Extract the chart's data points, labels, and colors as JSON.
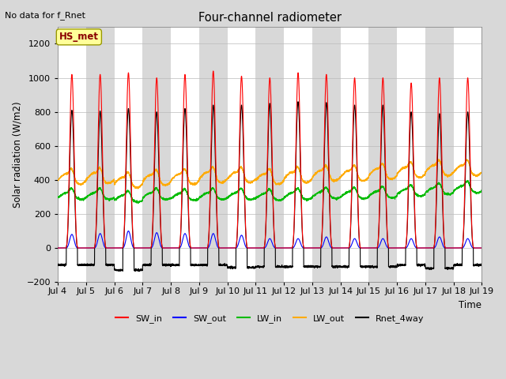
{
  "title": "Four-channel radiometer",
  "top_left_text": "No data for f_Rnet",
  "ylabel": "Solar radiation (W/m2)",
  "xlabel": "Time",
  "annotation_box": "HS_met",
  "ylim": [
    -200,
    1300
  ],
  "yticks": [
    -200,
    0,
    200,
    400,
    600,
    800,
    1000,
    1200
  ],
  "start_day": 4,
  "end_day": 19,
  "n_days": 15,
  "xtick_labels": [
    "Jul 4",
    "Jul 5",
    "Jul 6",
    "Jul 7",
    "Jul 8",
    "Jul 9",
    "Jul 10",
    "Jul 11",
    "Jul 12",
    "Jul 13",
    "Jul 14",
    "Jul 15",
    "Jul 16",
    "Jul 17",
    "Jul 18",
    "Jul 19"
  ],
  "colors": {
    "SW_in": "#ff0000",
    "SW_out": "#0000ff",
    "LW_in": "#00bb00",
    "LW_out": "#ffaa00",
    "Rnet_4way": "#000000"
  },
  "legend_labels": [
    "SW_in",
    "SW_out",
    "LW_in",
    "LW_out",
    "Rnet_4way"
  ],
  "fig_bg_color": "#d8d8d8",
  "plot_bg_white": "#ffffff",
  "plot_bg_gray": "#d8d8d8",
  "SW_in_peaks": [
    1020,
    1020,
    1030,
    1000,
    1020,
    1040,
    1010,
    1000,
    1030,
    1020,
    1000,
    1000,
    970,
    1000,
    1000
  ],
  "SW_out_peaks": [
    80,
    85,
    100,
    90,
    85,
    85,
    75,
    55,
    55,
    65,
    55,
    55,
    55,
    65,
    55
  ],
  "LW_in_base": [
    305,
    305,
    290,
    305,
    300,
    305,
    305,
    300,
    305,
    310,
    310,
    315,
    325,
    335,
    345
  ],
  "LW_out_base": [
    405,
    410,
    385,
    400,
    405,
    415,
    415,
    405,
    415,
    425,
    425,
    435,
    445,
    455,
    455
  ],
  "Rnet_peaks": [
    810,
    805,
    820,
    800,
    820,
    840,
    840,
    850,
    860,
    855,
    840,
    840,
    800,
    790,
    800
  ],
  "Rnet_night_min": [
    -100,
    -100,
    -130,
    -100,
    -100,
    -100,
    -115,
    -110,
    -110,
    -110,
    -110,
    -110,
    -100,
    -120,
    -100
  ]
}
